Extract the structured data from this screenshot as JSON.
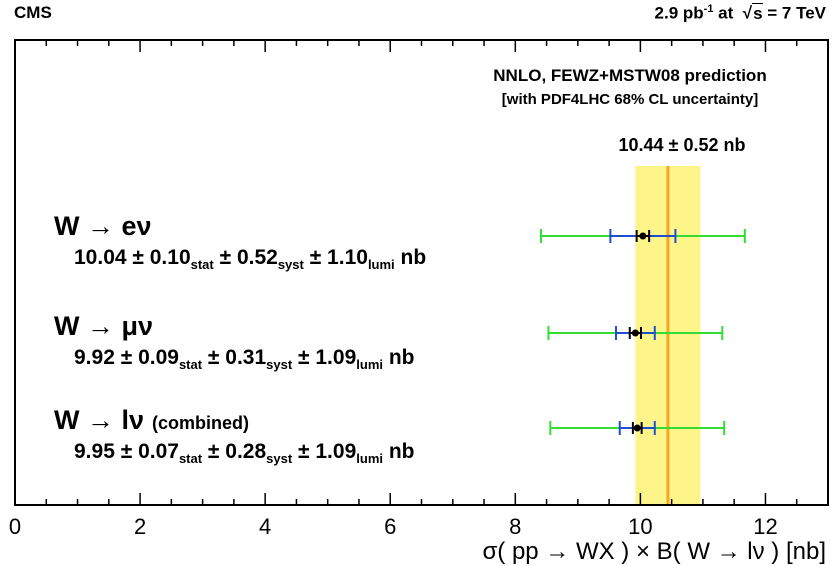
{
  "header": {
    "experiment": "CMS",
    "lumi_value": "2.9 pb",
    "lumi_exp": "-1",
    "energy_prefix": " at  √",
    "energy_s": "s",
    "energy_value": " = 7 TeV"
  },
  "annotations": {
    "theory_line1": "NNLO, FEWZ+MSTW08 prediction",
    "theory_line2": "[with PDF4LHC 68% CL uncertainty]",
    "theory_value": "10.44 ± 0.52 nb"
  },
  "measurements": [
    {
      "process": "W → eν",
      "process_note": "",
      "central": "10.04 ± 0.10",
      "stat_label": "stat",
      "syst": " ± 0.52",
      "syst_label": "syst",
      "lumi": " ± 1.10",
      "lumi_label": "lumi",
      "unit": " nb"
    },
    {
      "process": "W → μν",
      "process_note": "",
      "central": "9.92 ± 0.09",
      "stat_label": "stat",
      "syst": " ± 0.31",
      "syst_label": "syst",
      "lumi": " ± 1.09",
      "lumi_label": "lumi",
      "unit": " nb"
    },
    {
      "process": "W → lν",
      "process_note": "(combined)",
      "central": "9.95 ± 0.07",
      "stat_label": "stat",
      "syst": " ± 0.28",
      "syst_label": "syst",
      "lumi": " ± 1.09",
      "lumi_label": "lumi",
      "unit": " nb"
    }
  ],
  "chart_data": {
    "type": "scatter",
    "xlabel": "σ( pp → WX ) × B( W → lν )   [nb]",
    "xlim": [
      0,
      13
    ],
    "xticks": [
      "0",
      "2",
      "4",
      "6",
      "8",
      "10",
      "12"
    ],
    "grid": false,
    "theory": {
      "value": 10.44,
      "band": [
        9.92,
        10.96
      ],
      "band_color": "#fdf58a",
      "line_color": "#f5a623"
    },
    "points": [
      {
        "value": 10.04,
        "stat": 0.1,
        "stat_syst": [
          9.52,
          10.56
        ],
        "total": [
          8.41,
          11.67
        ]
      },
      {
        "value": 9.92,
        "stat": 0.09,
        "stat_syst": [
          9.61,
          10.23
        ],
        "total": [
          8.53,
          11.31
        ]
      },
      {
        "value": 9.95,
        "stat": 0.07,
        "stat_syst": [
          9.67,
          10.23
        ],
        "total": [
          8.56,
          11.34
        ]
      }
    ],
    "colors": {
      "total": "#33dd33",
      "stat_syst": "#1f4fd0",
      "stat": "#000000"
    }
  }
}
